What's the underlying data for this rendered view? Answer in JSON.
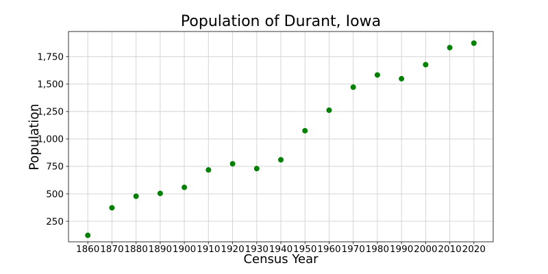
{
  "chart_data": {
    "type": "scatter",
    "title": "Population of Durant, Iowa",
    "xlabel": "Census Year",
    "ylabel": "Population",
    "x": [
      1860,
      1870,
      1880,
      1890,
      1900,
      1910,
      1920,
      1930,
      1940,
      1950,
      1960,
      1970,
      1980,
      1990,
      2000,
      2010,
      2020
    ],
    "y": [
      122,
      373,
      478,
      504,
      559,
      718,
      774,
      730,
      810,
      1075,
      1262,
      1472,
      1583,
      1549,
      1677,
      1832,
      1873
    ],
    "xlim": [
      1852,
      2028
    ],
    "ylim": [
      63,
      1979
    ],
    "xticks": [
      1860,
      1870,
      1880,
      1890,
      1900,
      1910,
      1920,
      1930,
      1940,
      1950,
      1960,
      1970,
      1980,
      1990,
      2000,
      2010,
      2020
    ],
    "xtick_labels": [
      "1860",
      "1870",
      "1880",
      "1890",
      "1900",
      "1910",
      "1920",
      "1930",
      "1940",
      "1950",
      "1960",
      "1970",
      "1980",
      "1990",
      "2000",
      "2010",
      "2020"
    ],
    "yticks": [
      250,
      500,
      750,
      1000,
      1250,
      1500,
      1750
    ],
    "ytick_labels": [
      "250",
      "500",
      "750",
      "1,000",
      "1,250",
      "1,500",
      "1,750"
    ],
    "grid": true,
    "legend": false,
    "colors": {
      "marker": "#008000",
      "grid": "#d4d4d4",
      "spine": "#333333",
      "text": "#000000",
      "background": "#ffffff"
    },
    "marker": {
      "shape": "circle",
      "radius_px": 4
    }
  }
}
